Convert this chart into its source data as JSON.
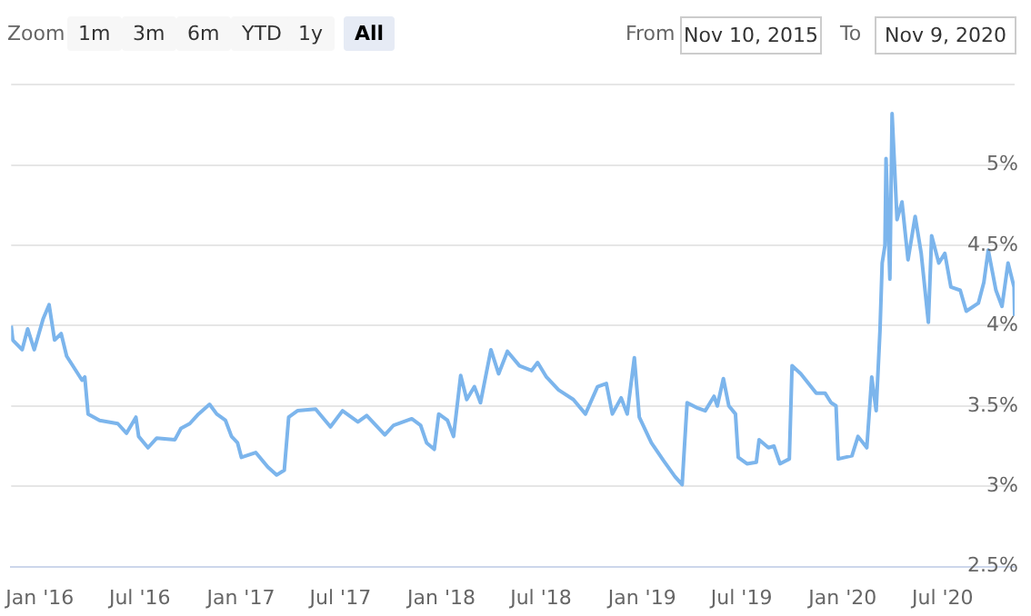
{
  "chart_data": {
    "type": "line",
    "annotations": [
      "Zoom",
      "1m",
      "3m",
      "6m",
      "YTD",
      "1y",
      "All",
      "From",
      "Nov 10, 2015",
      "To",
      "Nov 9, 2020"
    ],
    "x": [
      "2015-11-10",
      "2015-11-13",
      "2015-11-30",
      "2015-12-10",
      "2015-12-22",
      "2016-01-07",
      "2016-01-18",
      "2016-01-28",
      "2016-02-09",
      "2016-02-19",
      "2016-03-18",
      "2016-03-23",
      "2016-03-29",
      "2016-04-19",
      "2016-05-22",
      "2016-06-07",
      "2016-06-24",
      "2016-06-29",
      "2016-07-16",
      "2016-08-01",
      "2016-09-03",
      "2016-09-14",
      "2016-09-30",
      "2016-10-16",
      "2016-11-05",
      "2016-11-18",
      "2016-12-04",
      "2016-12-15",
      "2016-12-26",
      "2017-01-02",
      "2017-01-28",
      "2017-02-19",
      "2017-03-07",
      "2017-03-21",
      "2017-03-29",
      "2017-04-14",
      "2017-05-17",
      "2017-06-13",
      "2017-07-05",
      "2017-08-02",
      "2017-08-18",
      "2017-09-20",
      "2017-10-06",
      "2017-11-08",
      "2017-11-24",
      "2017-12-05",
      "2017-12-19",
      "2017-12-27",
      "2018-01-12",
      "2018-01-23",
      "2018-02-05",
      "2018-02-16",
      "2018-03-02",
      "2018-03-13",
      "2018-04-01",
      "2018-04-15",
      "2018-05-01",
      "2018-05-23",
      "2018-06-14",
      "2018-06-25",
      "2018-07-11",
      "2018-08-02",
      "2018-08-29",
      "2018-09-20",
      "2018-10-12",
      "2018-10-28",
      "2018-11-08",
      "2018-11-24",
      "2018-12-05",
      "2018-12-18",
      "2018-12-27",
      "2019-01-18",
      "2019-02-09",
      "2019-03-02",
      "2019-03-15",
      "2019-03-24",
      "2019-04-10",
      "2019-04-26",
      "2019-05-12",
      "2019-05-18",
      "2019-05-29",
      "2019-06-08",
      "2019-06-20",
      "2019-06-25",
      "2019-07-11",
      "2019-07-28",
      "2019-08-02",
      "2019-08-19",
      "2019-08-29",
      "2019-09-09",
      "2019-09-26",
      "2019-10-01",
      "2019-10-17",
      "2019-11-14",
      "2019-11-30",
      "2019-12-11",
      "2019-12-20",
      "2019-12-24",
      "2020-01-18",
      "2020-01-29",
      "2020-02-14",
      "2020-02-23",
      "2020-03-02",
      "2020-03-09",
      "2020-03-13",
      "2020-03-18",
      "2020-03-20",
      "2020-03-27",
      "2020-03-31",
      "2020-04-09",
      "2020-04-18",
      "2020-04-29",
      "2020-05-12",
      "2020-05-23",
      "2020-06-05",
      "2020-06-11",
      "2020-06-24",
      "2020-07-05",
      "2020-07-16",
      "2020-08-02",
      "2020-08-13",
      "2020-09-04",
      "2020-09-14",
      "2020-09-22",
      "2020-10-06",
      "2020-10-17",
      "2020-10-28",
      "2020-11-08",
      "2020-11-09"
    ],
    "values": [
      4.0,
      3.91,
      3.85,
      3.98,
      3.85,
      4.04,
      4.13,
      3.91,
      3.95,
      3.81,
      3.66,
      3.68,
      3.45,
      3.41,
      3.39,
      3.33,
      3.43,
      3.31,
      3.24,
      3.3,
      3.29,
      3.36,
      3.39,
      3.45,
      3.51,
      3.45,
      3.41,
      3.31,
      3.27,
      3.18,
      3.21,
      3.12,
      3.07,
      3.1,
      3.43,
      3.47,
      3.48,
      3.37,
      3.47,
      3.4,
      3.44,
      3.32,
      3.38,
      3.42,
      3.38,
      3.27,
      3.23,
      3.45,
      3.41,
      3.31,
      3.69,
      3.54,
      3.62,
      3.52,
      3.85,
      3.7,
      3.84,
      3.75,
      3.72,
      3.77,
      3.68,
      3.6,
      3.54,
      3.45,
      3.62,
      3.64,
      3.45,
      3.55,
      3.45,
      3.8,
      3.43,
      3.27,
      3.16,
      3.06,
      3.01,
      3.52,
      3.49,
      3.47,
      3.56,
      3.5,
      3.67,
      3.5,
      3.45,
      3.18,
      3.14,
      3.15,
      3.29,
      3.24,
      3.25,
      3.14,
      3.17,
      3.75,
      3.7,
      3.58,
      3.58,
      3.52,
      3.5,
      3.17,
      3.19,
      3.31,
      3.24,
      3.68,
      3.47,
      3.97,
      4.39,
      4.5,
      5.04,
      4.29,
      5.32,
      4.66,
      4.77,
      4.41,
      4.68,
      4.45,
      4.02,
      4.56,
      4.39,
      4.45,
      4.24,
      4.22,
      4.09,
      4.14,
      4.27,
      4.47,
      4.22,
      4.12,
      4.39,
      4.24,
      4.06
    ],
    "color": "#7cb5ec",
    "xlim": [
      "2015-11-10",
      "2020-11-09"
    ],
    "xticks": [
      {
        "value": "2016-01-01",
        "label": "Jan '16"
      },
      {
        "value": "2016-07-01",
        "label": "Jul '16"
      },
      {
        "value": "2017-01-01",
        "label": "Jan '17"
      },
      {
        "value": "2017-07-01",
        "label": "Jul '17"
      },
      {
        "value": "2018-01-01",
        "label": "Jan '18"
      },
      {
        "value": "2018-07-01",
        "label": "Jul '18"
      },
      {
        "value": "2019-01-01",
        "label": "Jan '19"
      },
      {
        "value": "2019-07-01",
        "label": "Jul '19"
      },
      {
        "value": "2020-01-01",
        "label": "Jan '20"
      },
      {
        "value": "2020-07-01",
        "label": "Jul '20"
      }
    ],
    "ylim": [
      2.5,
      5.5
    ],
    "yticks": [
      {
        "value": 2.5,
        "label": "2.5%"
      },
      {
        "value": 3,
        "label": "3%"
      },
      {
        "value": 3.5,
        "label": "3.5%"
      },
      {
        "value": 4,
        "label": "4%"
      },
      {
        "value": 4.5,
        "label": "4.5%"
      },
      {
        "value": 5,
        "label": "5%"
      },
      {
        "value": 5.5,
        "label": null
      }
    ],
    "grid": "y",
    "legend": false,
    "marker": "none",
    "line_style": "solid"
  }
}
